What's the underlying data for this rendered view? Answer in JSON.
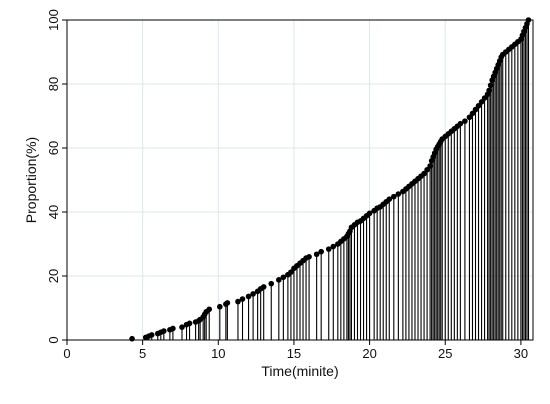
{
  "chart_data": {
    "type": "scatter",
    "title": "",
    "xlabel": "Time(minite)",
    "ylabel": "Proportion(%)",
    "xlim": [
      0,
      30.8
    ],
    "ylim": [
      0,
      100
    ],
    "xticks": [
      "0",
      "5",
      "10",
      "15",
      "20",
      "25",
      "30"
    ],
    "yticks": [
      "0",
      "20",
      "40",
      "60",
      "80",
      "100"
    ],
    "grid": true,
    "legend": "none",
    "marker_color": "#000000",
    "stem_color": "#000000",
    "grid_color": "#d7e9ee",
    "series": [
      {
        "points": [
          [
            4.3,
            0.4
          ],
          [
            5.2,
            0.8
          ],
          [
            5.4,
            1.2
          ],
          [
            5.6,
            1.6
          ],
          [
            6.0,
            2.0
          ],
          [
            6.2,
            2.4
          ],
          [
            6.4,
            2.8
          ],
          [
            6.8,
            3.2
          ],
          [
            7.0,
            3.6
          ],
          [
            7.6,
            4.0
          ],
          [
            7.9,
            4.8
          ],
          [
            8.1,
            5.2
          ],
          [
            8.5,
            5.6
          ],
          [
            8.7,
            6.0
          ],
          [
            8.8,
            6.4
          ],
          [
            9.0,
            7.2
          ],
          [
            9.1,
            8.0
          ],
          [
            9.2,
            8.8
          ],
          [
            9.4,
            9.6
          ],
          [
            10.1,
            10.4
          ],
          [
            10.5,
            11.2
          ],
          [
            10.6,
            11.6
          ],
          [
            11.3,
            12.0
          ],
          [
            11.6,
            12.8
          ],
          [
            12.0,
            13.6
          ],
          [
            12.3,
            14.4
          ],
          [
            12.6,
            15.2
          ],
          [
            12.8,
            16.0
          ],
          [
            13.0,
            16.6
          ],
          [
            13.5,
            17.6
          ],
          [
            14.0,
            18.8
          ],
          [
            14.3,
            19.6
          ],
          [
            14.6,
            20.4
          ],
          [
            14.8,
            21.2
          ],
          [
            15.0,
            22.4
          ],
          [
            15.2,
            23.2
          ],
          [
            15.4,
            24.0
          ],
          [
            15.6,
            24.8
          ],
          [
            15.8,
            25.6
          ],
          [
            16.0,
            26.0
          ],
          [
            16.5,
            26.8
          ],
          [
            16.8,
            27.6
          ],
          [
            17.3,
            28.4
          ],
          [
            17.6,
            29.2
          ],
          [
            17.9,
            30.0
          ],
          [
            18.1,
            30.8
          ],
          [
            18.3,
            31.6
          ],
          [
            18.5,
            32.4
          ],
          [
            18.6,
            33.2
          ],
          [
            18.7,
            34.0
          ],
          [
            18.8,
            35.2
          ],
          [
            19.0,
            36.0
          ],
          [
            19.2,
            36.8
          ],
          [
            19.4,
            37.2
          ],
          [
            19.6,
            38.0
          ],
          [
            19.8,
            38.8
          ],
          [
            20.0,
            39.6
          ],
          [
            20.3,
            40.4
          ],
          [
            20.5,
            41.2
          ],
          [
            20.7,
            41.6
          ],
          [
            20.9,
            42.4
          ],
          [
            21.1,
            43.2
          ],
          [
            21.3,
            44.0
          ],
          [
            21.6,
            44.8
          ],
          [
            21.9,
            45.6
          ],
          [
            22.2,
            46.4
          ],
          [
            22.4,
            47.2
          ],
          [
            22.6,
            48.0
          ],
          [
            22.8,
            48.8
          ],
          [
            23.0,
            49.6
          ],
          [
            23.2,
            50.4
          ],
          [
            23.4,
            51.2
          ],
          [
            23.6,
            52.0
          ],
          [
            23.8,
            53.2
          ],
          [
            24.0,
            54.4
          ],
          [
            24.1,
            56.0
          ],
          [
            24.2,
            57.2
          ],
          [
            24.3,
            58.4
          ],
          [
            24.4,
            59.6
          ],
          [
            24.5,
            60.4
          ],
          [
            24.6,
            61.2
          ],
          [
            24.7,
            62.0
          ],
          [
            24.8,
            62.8
          ],
          [
            25.0,
            63.6
          ],
          [
            25.2,
            64.4
          ],
          [
            25.4,
            65.2
          ],
          [
            25.6,
            66.0
          ],
          [
            25.8,
            66.8
          ],
          [
            26.0,
            67.6
          ],
          [
            26.3,
            68.4
          ],
          [
            26.6,
            69.6
          ],
          [
            26.8,
            70.8
          ],
          [
            27.0,
            72.0
          ],
          [
            27.2,
            73.2
          ],
          [
            27.4,
            74.4
          ],
          [
            27.6,
            75.6
          ],
          [
            27.8,
            76.8
          ],
          [
            27.9,
            78.0
          ],
          [
            28.0,
            79.6
          ],
          [
            28.1,
            81.2
          ],
          [
            28.2,
            82.4
          ],
          [
            28.3,
            83.6
          ],
          [
            28.4,
            84.8
          ],
          [
            28.5,
            86.0
          ],
          [
            28.6,
            87.2
          ],
          [
            28.7,
            88.4
          ],
          [
            28.8,
            89.2
          ],
          [
            29.0,
            90.0
          ],
          [
            29.2,
            90.8
          ],
          [
            29.4,
            91.6
          ],
          [
            29.6,
            92.4
          ],
          [
            29.8,
            93.2
          ],
          [
            30.0,
            94.0
          ],
          [
            30.1,
            95.2
          ],
          [
            30.2,
            96.4
          ],
          [
            30.3,
            97.6
          ],
          [
            30.4,
            98.8
          ],
          [
            30.5,
            100.0
          ]
        ]
      }
    ]
  }
}
